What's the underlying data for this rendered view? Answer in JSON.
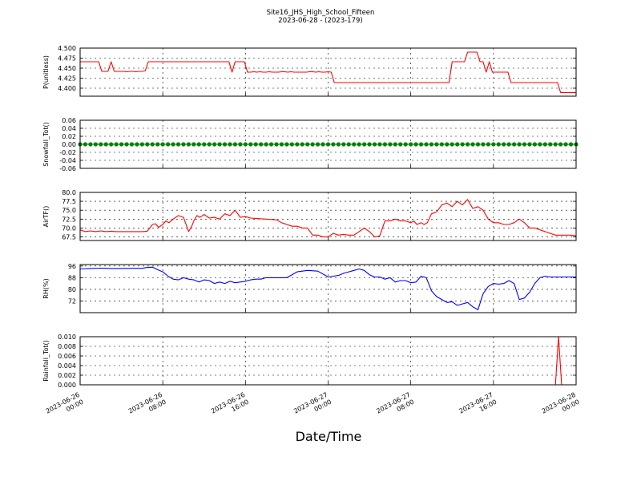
{
  "figure": {
    "title": "Site16_JHS_High_School_Fifteen",
    "subtitle": "2023-06-28 - (2023-179)",
    "xlabel": "Date/Time"
  },
  "chart_data": [
    {
      "type": "line",
      "name": "P(unitless)",
      "ylabel": "P(unitless)",
      "color": "#ff0000",
      "ylim": [
        4.38,
        4.5
      ],
      "yticks": [
        "4.400",
        "4.425",
        "4.450",
        "4.475",
        "4.500"
      ],
      "grid": true,
      "x": [
        0,
        0.3,
        0.6,
        0.9,
        1.2,
        1.5,
        1.8,
        2.1,
        2.4,
        2.7,
        3.0,
        3.3,
        3.6,
        3.9,
        4.2,
        4.5,
        4.8,
        5.1,
        5.4,
        5.7,
        6.0,
        6.3,
        6.6,
        6.9,
        7.2,
        7.5,
        7.8,
        8.1,
        8.4,
        8.7,
        9.0,
        9.3,
        9.6,
        9.9,
        10.2,
        10.5,
        10.8,
        11.1,
        11.4,
        11.7,
        12.0,
        12.3,
        12.6,
        12.9,
        13.2,
        13.5,
        13.8,
        14.1,
        14.4,
        14.7,
        15.0,
        15.3,
        15.6,
        15.9,
        16.2,
        16.5,
        16.8,
        17.1,
        17.4,
        17.7,
        18.0,
        18.3,
        18.6,
        18.9,
        19.2,
        19.5,
        19.8,
        20.1,
        20.4,
        20.7,
        21.0,
        21.3,
        21.6,
        21.9,
        22.2,
        22.5,
        22.8,
        23.1,
        23.4,
        23.7,
        24.0,
        24.3,
        24.6,
        24.9,
        25.2,
        25.5,
        25.8,
        26.1,
        26.4,
        26.7,
        27.0,
        27.3,
        27.6,
        27.9,
        28.2,
        28.5,
        28.8,
        29.1,
        29.4,
        29.7,
        30.0,
        30.3,
        30.6,
        30.9,
        31.2,
        31.5,
        31.8,
        32.1,
        32.4,
        32.7,
        33.0,
        33.3,
        33.6,
        33.9,
        34.2,
        34.5,
        34.8,
        35.1,
        35.4,
        35.7,
        36.0,
        36.3,
        36.6,
        36.9,
        37.2,
        37.5,
        37.8,
        38.1,
        38.4,
        38.7,
        39.0,
        39.3,
        39.6,
        39.9,
        40.2,
        40.5,
        40.8,
        41.1,
        41.4,
        41.7,
        42.0,
        42.3,
        42.6,
        42.9,
        43.2,
        43.5,
        43.8,
        44.1,
        44.4,
        44.7,
        45.0,
        45.3,
        45.6,
        45.9,
        46.2,
        46.5,
        46.8,
        47.1,
        47.4,
        47.7,
        48.0
      ],
      "values": [
        4.466,
        4.466,
        4.466,
        4.466,
        4.466,
        4.466,
        4.466,
        4.442,
        4.442,
        4.442,
        4.466,
        4.442,
        4.442,
        4.442,
        4.442,
        4.441,
        4.442,
        4.442,
        4.441,
        4.442,
        4.442,
        4.443,
        4.466,
        4.466,
        4.466,
        4.466,
        4.466,
        4.466,
        4.466,
        4.466,
        4.466,
        4.466,
        4.466,
        4.466,
        4.466,
        4.466,
        4.466,
        4.466,
        4.466,
        4.466,
        4.466,
        4.466,
        4.466,
        4.466,
        4.466,
        4.466,
        4.466,
        4.466,
        4.466,
        4.44,
        4.466,
        4.466,
        4.466,
        4.466,
        4.44,
        4.44,
        4.441,
        4.44,
        4.441,
        4.44,
        4.44,
        4.441,
        4.44,
        4.44,
        4.44,
        4.441,
        4.441,
        4.44,
        4.441,
        4.44,
        4.44,
        4.44,
        4.44,
        4.44,
        4.441,
        4.441,
        4.44,
        4.441,
        4.44,
        4.44,
        4.441,
        4.44,
        4.414,
        4.414,
        4.414,
        4.414,
        4.414,
        4.414,
        4.414,
        4.414,
        4.414,
        4.414,
        4.414,
        4.414,
        4.414,
        4.414,
        4.414,
        4.414,
        4.414,
        4.414,
        4.414,
        4.414,
        4.414,
        4.414,
        4.414,
        4.414,
        4.414,
        4.414,
        4.414,
        4.414,
        4.414,
        4.414,
        4.414,
        4.414,
        4.414,
        4.414,
        4.414,
        4.414,
        4.414,
        4.414,
        4.466,
        4.466,
        4.466,
        4.466,
        4.466,
        4.49,
        4.49,
        4.49,
        4.49,
        4.466,
        4.466,
        4.44,
        4.466,
        4.44,
        4.44,
        4.44,
        4.44,
        4.44,
        4.44,
        4.414,
        4.414,
        4.414,
        4.414,
        4.414,
        4.414,
        4.414,
        4.414,
        4.414,
        4.414,
        4.414,
        4.414,
        4.414,
        4.414,
        4.414,
        4.414,
        4.389,
        4.389,
        4.389,
        4.389,
        4.389,
        4.389
      ]
    },
    {
      "type": "line",
      "name": "Snowfall_Tot()",
      "ylabel": "Snowfall_Tot()",
      "color": "#008000",
      "markers": true,
      "ylim": [
        -0.06,
        0.06
      ],
      "yticks": [
        "-0.06",
        "-0.04",
        "-0.02",
        "0.00",
        "0.02",
        "0.04",
        "0.06"
      ],
      "grid": true,
      "x": [
        0,
        0.5,
        1.0,
        1.5,
        2.0,
        2.5,
        3.0,
        3.5,
        4.0,
        4.5,
        5.0,
        5.5,
        6.0,
        6.5,
        7.0,
        7.5,
        8.0,
        8.5,
        9.0,
        9.5,
        10.0,
        10.5,
        11.0,
        11.5,
        12.0,
        12.5,
        13.0,
        13.5,
        14.0,
        14.5,
        15.0,
        15.5,
        16.0,
        16.5,
        17.0,
        17.5,
        18.0,
        18.5,
        19.0,
        19.5,
        20.0,
        20.5,
        21.0,
        21.5,
        22.0,
        22.5,
        23.0,
        23.5,
        24.0,
        24.5,
        25.0,
        25.5,
        26.0,
        26.5,
        27.0,
        27.5,
        28.0,
        28.5,
        29.0,
        29.5,
        30.0,
        30.5,
        31.0,
        31.5,
        32.0,
        32.5,
        33.0,
        33.5,
        34.0,
        34.5,
        35.0,
        35.5,
        36.0,
        36.5,
        37.0,
        37.5,
        38.0,
        38.5,
        39.0,
        39.5,
        40.0,
        40.5,
        41.0,
        41.5,
        42.0,
        42.5,
        43.0,
        43.5,
        44.0,
        44.5,
        45.0,
        45.5,
        46.0,
        46.5,
        47.0,
        47.5,
        48.0
      ],
      "values": [
        0,
        0,
        0,
        0,
        0,
        0,
        0,
        0,
        0,
        0,
        0,
        0,
        0,
        0,
        0,
        0,
        0,
        0,
        0,
        0,
        0,
        0,
        0,
        0,
        0,
        0,
        0,
        0,
        0,
        0,
        0,
        0,
        0,
        0,
        0,
        0,
        0,
        0,
        0,
        0,
        0,
        0,
        0,
        0,
        0,
        0,
        0,
        0,
        0,
        0,
        0,
        0,
        0,
        0,
        0,
        0,
        0,
        0,
        0,
        0,
        0,
        0,
        0,
        0,
        0,
        0,
        0,
        0,
        0,
        0,
        0,
        0,
        0,
        0,
        0,
        0,
        0,
        0,
        0,
        0,
        0,
        0,
        0,
        0,
        0,
        0,
        0,
        0,
        0,
        0,
        0,
        0,
        0,
        0,
        0,
        0,
        0
      ]
    },
    {
      "type": "line",
      "name": "AirTF()",
      "ylabel": "AirTF()",
      "color": "#ff0000",
      "ylim": [
        66.5,
        80
      ],
      "yticks": [
        "67.5",
        "70.0",
        "72.5",
        "75.0",
        "77.5",
        "80.0"
      ],
      "grid": true,
      "x": [
        0,
        0.5,
        1.0,
        1.5,
        2.0,
        2.5,
        3.0,
        3.5,
        4.0,
        4.5,
        5.0,
        5.5,
        6.0,
        6.5,
        7.0,
        7.3,
        7.6,
        8.0,
        8.3,
        8.6,
        9.0,
        9.5,
        10.0,
        10.5,
        10.8,
        11.0,
        11.3,
        11.6,
        12.0,
        12.5,
        13.0,
        13.5,
        14.0,
        14.5,
        15.0,
        15.5,
        16.0,
        16.5,
        17.0,
        17.5,
        18.0,
        18.5,
        19.0,
        19.5,
        20.0,
        20.5,
        21.0,
        21.5,
        22.0,
        22.5,
        23.0,
        23.5,
        24.0,
        24.5,
        25.0,
        25.5,
        26.0,
        26.5,
        27.0,
        27.5,
        28.0,
        28.5,
        29.0,
        29.5,
        30.0,
        30.5,
        31.0,
        31.5,
        32.0,
        32.3,
        32.6,
        33.0,
        33.3,
        33.6,
        34.0,
        34.5,
        35.0,
        35.5,
        36.0,
        36.5,
        37.0,
        37.5,
        38.0,
        38.5,
        39.0,
        39.5,
        40.0,
        40.5,
        41.0,
        41.5,
        42.0,
        42.5,
        43.0,
        43.5,
        44.0,
        44.5,
        45.0,
        45.5,
        46.0,
        46.5,
        47.0,
        47.5,
        48.0
      ],
      "values": [
        69.5,
        69.0,
        69.2,
        69.0,
        69.2,
        69.0,
        69.1,
        69.0,
        69.0,
        69.0,
        69.0,
        69.0,
        69.0,
        69.1,
        71.0,
        71.2,
        70.2,
        71.0,
        72.0,
        71.5,
        72.5,
        73.5,
        73.0,
        69.0,
        70.5,
        72.0,
        73.5,
        73.0,
        73.8,
        72.8,
        73.0,
        72.5,
        74.0,
        73.5,
        75.0,
        73.0,
        73.2,
        72.8,
        72.7,
        72.6,
        72.5,
        72.4,
        72.3,
        71.5,
        71.0,
        70.5,
        70.5,
        70.0,
        70.0,
        68.0,
        68.0,
        67.5,
        67.5,
        68.5,
        68.0,
        68.2,
        68.0,
        68.0,
        69.0,
        70.0,
        69.0,
        67.5,
        67.8,
        72.0,
        72.0,
        72.5,
        72.0,
        72.0,
        71.5,
        72.0,
        71.0,
        71.5,
        71.0,
        71.5,
        74.0,
        74.5,
        76.5,
        77.0,
        76.0,
        77.5,
        76.5,
        78.0,
        75.5,
        76.0,
        75.0,
        72.5,
        71.5,
        71.5,
        71.0,
        71.0,
        71.5,
        72.5,
        71.5,
        70.0,
        70.0,
        69.5,
        69.0,
        68.5,
        68.0,
        68.0,
        68.0,
        68.0,
        67.8
      ]
    },
    {
      "type": "line",
      "name": "RH(%)",
      "ylabel": "RH(%)",
      "color": "#0000ff",
      "ylim": [
        64,
        97
      ],
      "yticks": [
        "72",
        "80",
        "88",
        "96"
      ],
      "grid": true,
      "x": [
        0,
        1,
        2,
        3,
        4,
        5,
        6,
        6.5,
        7,
        7.5,
        8,
        8.5,
        9,
        9.5,
        10,
        10.5,
        11,
        11.5,
        12,
        12.5,
        13,
        13.5,
        14,
        14.5,
        15,
        15.5,
        16,
        16.5,
        17,
        17.5,
        18,
        19,
        20,
        21,
        22,
        23,
        24,
        24.5,
        25,
        25.5,
        26,
        26.5,
        27,
        27.5,
        28,
        28.5,
        29,
        29.5,
        30,
        30.5,
        31,
        31.5,
        32,
        32.5,
        33,
        33.5,
        34,
        34.5,
        35,
        35.5,
        36,
        36.5,
        37,
        37.5,
        38,
        38.5,
        39,
        39.5,
        40,
        40.5,
        41,
        41.5,
        42,
        42.5,
        43,
        43.5,
        44,
        44.5,
        45,
        45.5,
        46,
        46.5,
        47,
        47.5,
        48
      ],
      "values": [
        94,
        94.3,
        94.5,
        94.3,
        94.3,
        94.4,
        94.4,
        95.0,
        95.2,
        93.5,
        92.0,
        89.0,
        87.0,
        86.5,
        88.0,
        87.0,
        86.5,
        85.0,
        86.5,
        86.0,
        84.0,
        85.0,
        84.0,
        85.5,
        84.5,
        85.0,
        85.5,
        86.5,
        87.0,
        87.0,
        88.0,
        88.0,
        88.0,
        92.0,
        93.0,
        92.5,
        88.5,
        89.0,
        89.5,
        91.0,
        92.0,
        93.0,
        94.0,
        93.0,
        90.0,
        88.5,
        88.5,
        87.0,
        88.0,
        85.0,
        86.0,
        86.0,
        84.5,
        85.0,
        89.0,
        88.0,
        79.0,
        75.0,
        73.0,
        71.0,
        71.5,
        69.0,
        70.0,
        71.0,
        68.0,
        66.0,
        77.0,
        82.0,
        84.0,
        83.5,
        84.0,
        86.0,
        84.0,
        73.0,
        74.0,
        78.0,
        84.0,
        88.0,
        89.0,
        88.5,
        88.5,
        88.5,
        88.5,
        88.5,
        88.5
      ]
    },
    {
      "type": "line",
      "name": "Rainfall_Tot()",
      "ylabel": "Rainfall_Tot()",
      "color": "#ff0000",
      "ylim": [
        0,
        0.01
      ],
      "yticks": [
        "0.000",
        "0.002",
        "0.004",
        "0.006",
        "0.008",
        "0.010"
      ],
      "grid": true,
      "x": [
        0,
        12,
        24,
        36,
        46.0,
        46.3,
        46.6,
        48
      ],
      "values": [
        0,
        0,
        0,
        0,
        0,
        0.01,
        0,
        0
      ]
    }
  ],
  "x_axis": {
    "ticks": [
      {
        "x": 0,
        "label": "2023-06-26\n00:00"
      },
      {
        "x": 8,
        "label": "2023-06-26\n08:00"
      },
      {
        "x": 16,
        "label": "2023-06-26\n16:00"
      },
      {
        "x": 24,
        "label": "2023-06-27\n00:00"
      },
      {
        "x": 32,
        "label": "2023-06-27\n08:00"
      },
      {
        "x": 40,
        "label": "2023-06-27\n16:00"
      },
      {
        "x": 48,
        "label": "2023-06-28\n00:00"
      }
    ],
    "range": [
      0,
      48
    ]
  }
}
